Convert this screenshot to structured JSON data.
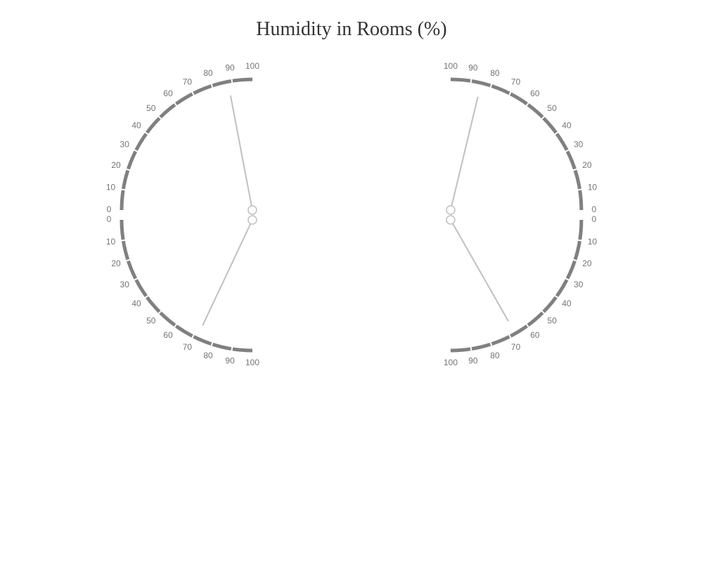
{
  "chart_data": {
    "type": "gauge",
    "title": "Humidity in Rooms (%)",
    "scale": {
      "min": 0,
      "max": 100,
      "ticks": [
        0,
        10,
        20,
        30,
        40,
        50,
        60,
        70,
        80,
        90,
        100
      ]
    },
    "gauges": [
      {
        "id": "left-upper",
        "side": "left",
        "half": "upper",
        "value": 88
      },
      {
        "id": "left-lower",
        "side": "left",
        "half": "lower",
        "value": 72
      },
      {
        "id": "right-upper",
        "side": "right",
        "half": "upper",
        "value": 85
      },
      {
        "id": "right-lower",
        "side": "right",
        "half": "lower",
        "value": 67
      }
    ],
    "colors": {
      "arc": "#808080",
      "needle": "#c0c0c0",
      "label": "#757575",
      "title": "#333333"
    }
  }
}
